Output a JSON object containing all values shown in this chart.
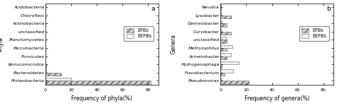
{
  "phyla": {
    "categories": [
      "Acidobacteria",
      "Chloroflexi",
      "Actinobacteria",
      "unclassified",
      "Planctomycetes",
      "Parcubacteria",
      "Firmicutes",
      "Verrucomicrobia",
      "Bacteroidetes",
      "Proteobacteria"
    ],
    "EFBs": [
      0.1,
      0.1,
      0.1,
      0.1,
      0.1,
      0.1,
      0.1,
      0.5,
      12.0,
      82.0
    ],
    "EEFBs": [
      0.1,
      0.1,
      0.1,
      0.1,
      0.1,
      0.1,
      0.1,
      0.1,
      0.5,
      20.0
    ],
    "xlabel": "Frequency of phyla(%)",
    "ylabel": "Phyla",
    "xlim": [
      0,
      88
    ],
    "xticks": [
      0,
      20,
      40,
      60,
      80
    ],
    "label": "a"
  },
  "genera": {
    "categories": [
      "Nevskia",
      "Lysobacter",
      "Gemmobacter",
      "Curvibacter",
      "unclassified",
      "Methylophilus",
      "Acinetobacter",
      "Hydrogenophaga",
      "Flavobacterium",
      "Pseudomonas"
    ],
    "EFBs": [
      0.5,
      8.0,
      5.0,
      8.0,
      5.0,
      5.0,
      5.0,
      1.0,
      3.0,
      22.0
    ],
    "EEFBs": [
      0.5,
      0.1,
      1.0,
      0.5,
      4.0,
      9.0,
      8.0,
      14.0,
      10.0,
      0.5
    ],
    "xlabel": "Frequency of genera(%)",
    "ylabel": "Genera",
    "xlim": [
      0,
      88
    ],
    "xticks": [
      0,
      20,
      40,
      60,
      80
    ],
    "label": "b"
  },
  "efbs_color": "#cccccc",
  "eefbs_color": "#f0f0f0",
  "efbs_hatch": "////",
  "eefbs_hatch": "",
  "bar_height": 0.38,
  "bar_edgecolor": "#666666",
  "legend_fontsize": 4.8,
  "tick_fontsize": 4.5,
  "label_fontsize": 6.5,
  "axis_label_fontsize": 5.5,
  "ylabel_fontsize": 5.5
}
